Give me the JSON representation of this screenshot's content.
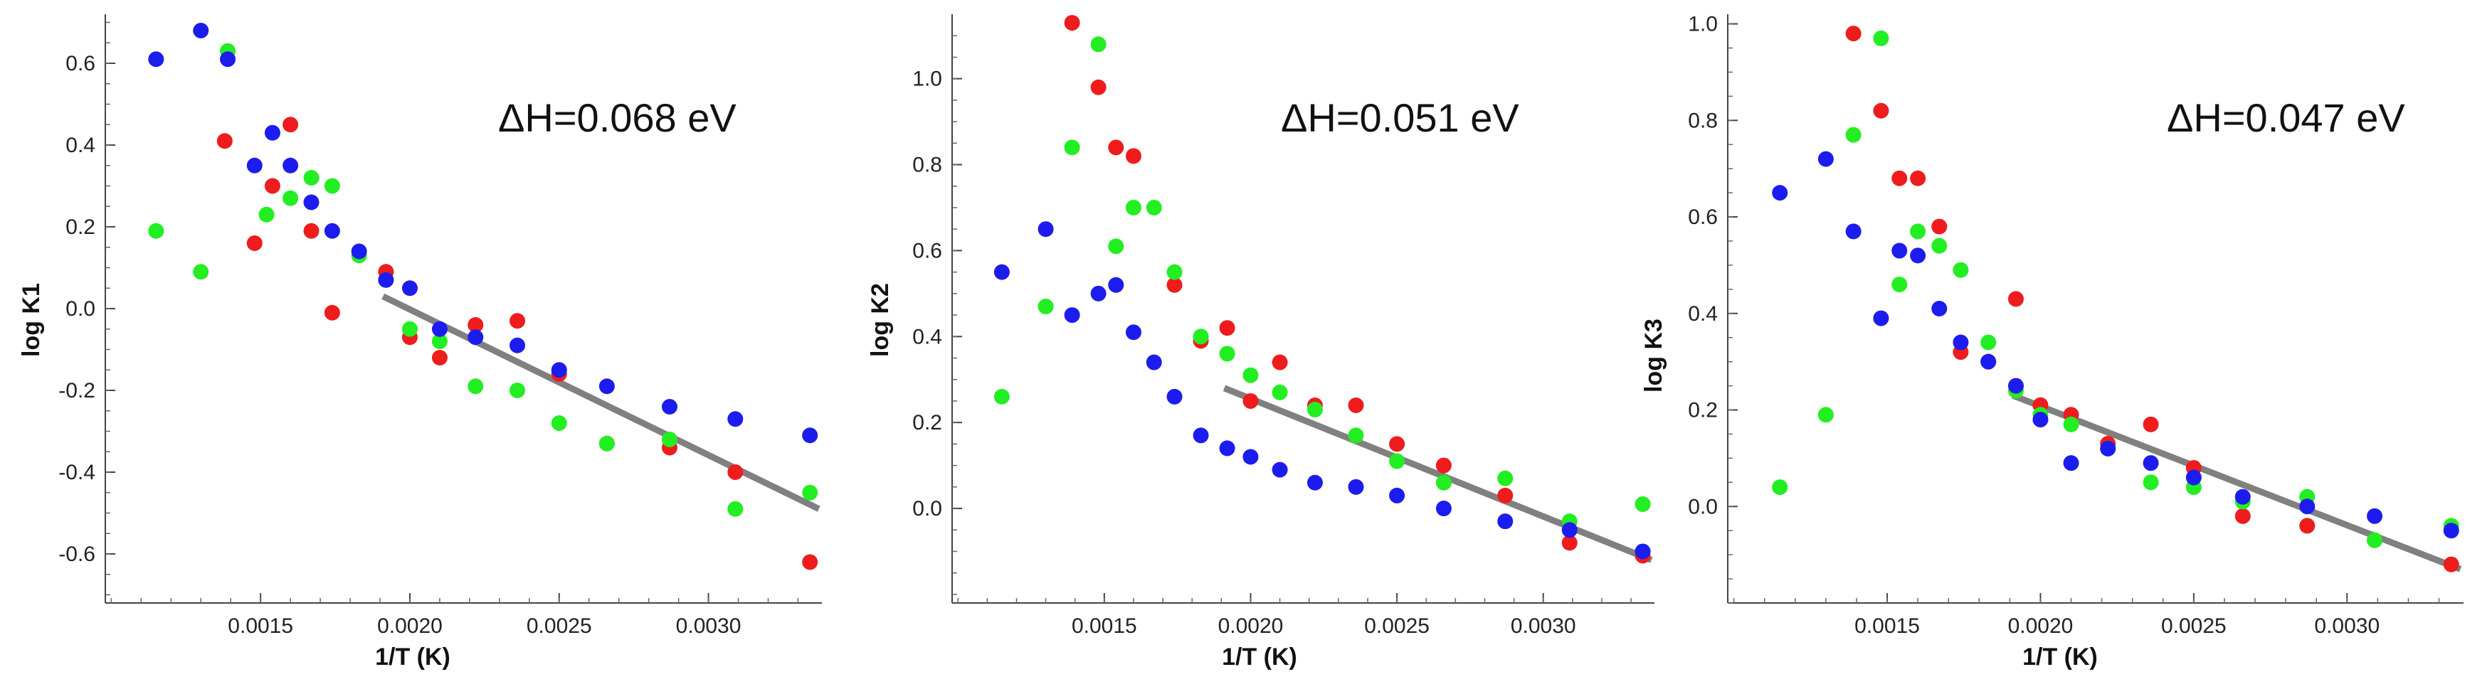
{
  "chart_data": [
    {
      "type": "scatter",
      "xlabel": "1/T (K)",
      "ylabel": "log K1",
      "annotation": "ΔH=0.068 eV",
      "xlim": [
        0.00098,
        0.00338
      ],
      "ylim": [
        -0.72,
        0.72
      ],
      "xticks": [
        {
          "value": 0.0015,
          "label": "0.0015"
        },
        {
          "value": 0.002,
          "label": "0.0020"
        },
        {
          "value": 0.0025,
          "label": "0.0025"
        },
        {
          "value": 0.003,
          "label": "0.0030"
        }
      ],
      "yticks": [
        {
          "value": -0.6,
          "label": "-0.6"
        },
        {
          "value": -0.4,
          "label": "-0.4"
        },
        {
          "value": -0.2,
          "label": "-0.2"
        },
        {
          "value": 0.0,
          "label": "0.0"
        },
        {
          "value": 0.2,
          "label": "0.2"
        },
        {
          "value": 0.4,
          "label": "0.4"
        },
        {
          "value": 0.6,
          "label": "0.6"
        }
      ],
      "series": [
        {
          "name": "red",
          "color": "#ee1c1c",
          "points": [
            [
              0.00138,
              0.41
            ],
            [
              0.00148,
              0.16
            ],
            [
              0.00154,
              0.3
            ],
            [
              0.0016,
              0.45
            ],
            [
              0.00167,
              0.19
            ],
            [
              0.00174,
              -0.01
            ],
            [
              0.00192,
              0.09
            ],
            [
              0.002,
              -0.07
            ],
            [
              0.0021,
              -0.12
            ],
            [
              0.00222,
              -0.04
            ],
            [
              0.00236,
              -0.03
            ],
            [
              0.0025,
              -0.16
            ],
            [
              0.00266,
              -0.33
            ],
            [
              0.00287,
              -0.34
            ],
            [
              0.00309,
              -0.4
            ],
            [
              0.00334,
              -0.62
            ]
          ]
        },
        {
          "name": "green",
          "color": "#22ee22",
          "points": [
            [
              0.00115,
              0.19
            ],
            [
              0.0013,
              0.09
            ],
            [
              0.00139,
              0.63
            ],
            [
              0.00152,
              0.23
            ],
            [
              0.0016,
              0.27
            ],
            [
              0.00167,
              0.32
            ],
            [
              0.00174,
              0.3
            ],
            [
              0.00183,
              0.13
            ],
            [
              0.00192,
              0.07
            ],
            [
              0.002,
              -0.05
            ],
            [
              0.0021,
              -0.08
            ],
            [
              0.00222,
              -0.19
            ],
            [
              0.00236,
              -0.2
            ],
            [
              0.0025,
              -0.28
            ],
            [
              0.00266,
              -0.33
            ],
            [
              0.00287,
              -0.32
            ],
            [
              0.00309,
              -0.49
            ],
            [
              0.00334,
              -0.45
            ]
          ]
        },
        {
          "name": "blue",
          "color": "#1c1cee",
          "points": [
            [
              0.00115,
              0.61
            ],
            [
              0.0013,
              0.68
            ],
            [
              0.00139,
              0.61
            ],
            [
              0.00148,
              0.35
            ],
            [
              0.00154,
              0.43
            ],
            [
              0.0016,
              0.35
            ],
            [
              0.00167,
              0.26
            ],
            [
              0.00174,
              0.19
            ],
            [
              0.00183,
              0.14
            ],
            [
              0.00192,
              0.07
            ],
            [
              0.002,
              0.05
            ],
            [
              0.0021,
              -0.05
            ],
            [
              0.00222,
              -0.07
            ],
            [
              0.00236,
              -0.09
            ],
            [
              0.0025,
              -0.15
            ],
            [
              0.00266,
              -0.19
            ],
            [
              0.00287,
              -0.24
            ],
            [
              0.00309,
              -0.27
            ],
            [
              0.00334,
              -0.31
            ]
          ]
        }
      ],
      "fit_line": {
        "color": "#808080",
        "from": [
          0.00191,
          0.03
        ],
        "to": [
          0.00337,
          -0.49
        ]
      }
    },
    {
      "type": "scatter",
      "xlabel": "1/T (K)",
      "ylabel": "log K2",
      "annotation": "ΔH=0.051 eV",
      "xlim": [
        0.00098,
        0.00338
      ],
      "ylim": [
        -0.22,
        1.15
      ],
      "xticks": [
        {
          "value": 0.0015,
          "label": "0.0015"
        },
        {
          "value": 0.002,
          "label": "0.0020"
        },
        {
          "value": 0.0025,
          "label": "0.0025"
        },
        {
          "value": 0.003,
          "label": "0.0030"
        }
      ],
      "yticks": [
        {
          "value": 0.0,
          "label": "0.0"
        },
        {
          "value": 0.2,
          "label": "0.2"
        },
        {
          "value": 0.4,
          "label": "0.4"
        },
        {
          "value": 0.6,
          "label": "0.6"
        },
        {
          "value": 0.8,
          "label": "0.8"
        },
        {
          "value": 1.0,
          "label": "1.0"
        }
      ],
      "series": [
        {
          "name": "red",
          "color": "#ee1c1c",
          "points": [
            [
              0.00139,
              1.13
            ],
            [
              0.00148,
              0.98
            ],
            [
              0.00154,
              0.84
            ],
            [
              0.0016,
              0.82
            ],
            [
              0.00174,
              0.52
            ],
            [
              0.00183,
              0.39
            ],
            [
              0.00192,
              0.42
            ],
            [
              0.002,
              0.25
            ],
            [
              0.0021,
              0.34
            ],
            [
              0.00222,
              0.24
            ],
            [
              0.00236,
              0.24
            ],
            [
              0.0025,
              0.15
            ],
            [
              0.00266,
              0.1
            ],
            [
              0.00287,
              0.03
            ],
            [
              0.00309,
              -0.08
            ],
            [
              0.00334,
              -0.11
            ]
          ]
        },
        {
          "name": "green",
          "color": "#22ee22",
          "points": [
            [
              0.00115,
              0.26
            ],
            [
              0.0013,
              0.47
            ],
            [
              0.00139,
              0.84
            ],
            [
              0.00148,
              1.08
            ],
            [
              0.00154,
              0.61
            ],
            [
              0.0016,
              0.7
            ],
            [
              0.00167,
              0.7
            ],
            [
              0.00174,
              0.55
            ],
            [
              0.00183,
              0.4
            ],
            [
              0.00192,
              0.36
            ],
            [
              0.002,
              0.31
            ],
            [
              0.0021,
              0.27
            ],
            [
              0.00222,
              0.23
            ],
            [
              0.00236,
              0.17
            ],
            [
              0.0025,
              0.11
            ],
            [
              0.00266,
              0.06
            ],
            [
              0.00287,
              0.07
            ],
            [
              0.00309,
              -0.03
            ],
            [
              0.00334,
              0.01
            ]
          ]
        },
        {
          "name": "blue",
          "color": "#1c1cee",
          "points": [
            [
              0.00115,
              0.55
            ],
            [
              0.0013,
              0.65
            ],
            [
              0.00139,
              0.45
            ],
            [
              0.00148,
              0.5
            ],
            [
              0.00154,
              0.52
            ],
            [
              0.0016,
              0.41
            ],
            [
              0.00167,
              0.34
            ],
            [
              0.00174,
              0.26
            ],
            [
              0.00183,
              0.17
            ],
            [
              0.00192,
              0.14
            ],
            [
              0.002,
              0.12
            ],
            [
              0.0021,
              0.09
            ],
            [
              0.00222,
              0.06
            ],
            [
              0.00236,
              0.05
            ],
            [
              0.0025,
              0.03
            ],
            [
              0.00266,
              0.0
            ],
            [
              0.00287,
              -0.03
            ],
            [
              0.00309,
              -0.05
            ],
            [
              0.00334,
              -0.1
            ]
          ]
        }
      ],
      "fit_line": {
        "color": "#808080",
        "from": [
          0.00191,
          0.28
        ],
        "to": [
          0.00337,
          -0.12
        ]
      }
    },
    {
      "type": "scatter",
      "xlabel": "1/T (K)",
      "ylabel": "log K3",
      "annotation": "ΔH=0.047 eV",
      "xlim": [
        0.00098,
        0.00338
      ],
      "ylim": [
        -0.2,
        1.02
      ],
      "xticks": [
        {
          "value": 0.0015,
          "label": "0.0015"
        },
        {
          "value": 0.002,
          "label": "0.0020"
        },
        {
          "value": 0.0025,
          "label": "0.0025"
        },
        {
          "value": 0.003,
          "label": "0.0030"
        }
      ],
      "yticks": [
        {
          "value": 0.0,
          "label": "0.0"
        },
        {
          "value": 0.2,
          "label": "0.2"
        },
        {
          "value": 0.4,
          "label": "0.4"
        },
        {
          "value": 0.6,
          "label": "0.6"
        },
        {
          "value": 0.8,
          "label": "0.8"
        },
        {
          "value": 1.0,
          "label": "1.0"
        }
      ],
      "series": [
        {
          "name": "red",
          "color": "#ee1c1c",
          "points": [
            [
              0.00139,
              0.98
            ],
            [
              0.00148,
              0.82
            ],
            [
              0.00154,
              0.68
            ],
            [
              0.0016,
              0.68
            ],
            [
              0.00167,
              0.58
            ],
            [
              0.00174,
              0.32
            ],
            [
              0.00183,
              0.3
            ],
            [
              0.00192,
              0.43
            ],
            [
              0.002,
              0.21
            ],
            [
              0.0021,
              0.19
            ],
            [
              0.00222,
              0.13
            ],
            [
              0.00236,
              0.17
            ],
            [
              0.0025,
              0.08
            ],
            [
              0.00266,
              -0.02
            ],
            [
              0.00287,
              -0.04
            ],
            [
              0.00309,
              -0.07
            ],
            [
              0.00334,
              -0.12
            ]
          ]
        },
        {
          "name": "green",
          "color": "#22ee22",
          "points": [
            [
              0.00115,
              0.04
            ],
            [
              0.0013,
              0.19
            ],
            [
              0.00139,
              0.77
            ],
            [
              0.00148,
              0.97
            ],
            [
              0.00154,
              0.46
            ],
            [
              0.0016,
              0.57
            ],
            [
              0.00167,
              0.54
            ],
            [
              0.00174,
              0.49
            ],
            [
              0.00183,
              0.34
            ],
            [
              0.00192,
              0.24
            ],
            [
              0.002,
              0.19
            ],
            [
              0.0021,
              0.17
            ],
            [
              0.00222,
              0.12
            ],
            [
              0.00236,
              0.05
            ],
            [
              0.0025,
              0.04
            ],
            [
              0.00266,
              0.01
            ],
            [
              0.00287,
              0.02
            ],
            [
              0.00309,
              -0.07
            ],
            [
              0.00334,
              -0.04
            ]
          ]
        },
        {
          "name": "blue",
          "color": "#1c1cee",
          "points": [
            [
              0.00115,
              0.65
            ],
            [
              0.0013,
              0.72
            ],
            [
              0.00139,
              0.57
            ],
            [
              0.00148,
              0.39
            ],
            [
              0.00154,
              0.53
            ],
            [
              0.0016,
              0.52
            ],
            [
              0.00167,
              0.41
            ],
            [
              0.00174,
              0.34
            ],
            [
              0.00183,
              0.3
            ],
            [
              0.00192,
              0.25
            ],
            [
              0.002,
              0.18
            ],
            [
              0.0021,
              0.09
            ],
            [
              0.00222,
              0.12
            ],
            [
              0.00236,
              0.09
            ],
            [
              0.0025,
              0.06
            ],
            [
              0.00266,
              0.02
            ],
            [
              0.00287,
              0.0
            ],
            [
              0.00309,
              -0.02
            ],
            [
              0.00334,
              -0.05
            ]
          ]
        }
      ],
      "fit_line": {
        "color": "#808080",
        "from": [
          0.00191,
          0.23
        ],
        "to": [
          0.00337,
          -0.13
        ]
      }
    }
  ]
}
